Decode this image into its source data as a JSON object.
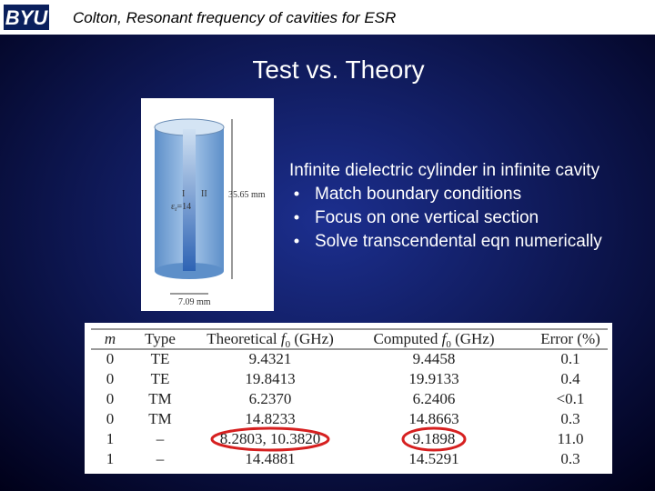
{
  "header": {
    "logo": "BYU",
    "title": "Colton, Resonant frequency of cavities for ESR"
  },
  "slide_title": "Test vs. Theory",
  "figure": {
    "region1": "I",
    "region2": "II",
    "permittivity": {
      "sym": "ε",
      "sub": "r",
      "post": "=14"
    },
    "height": "35.65 mm",
    "width": "7.09 mm"
  },
  "text": {
    "lead": "Infinite dielectric cylinder in infinite cavity",
    "bullets": [
      "Match boundary conditions",
      "Focus on one vertical section",
      "Solve transcendental eqn numerically"
    ]
  },
  "table": {
    "columns": [
      {
        "pre": "m"
      },
      {
        "pre": "Type"
      },
      {
        "pre": "Theoretical ",
        "sym": "f",
        "sub": "0",
        "post": " (GHz)"
      },
      {
        "pre": "Computed ",
        "sym": "f",
        "sub": "0",
        "post": " (GHz)"
      },
      {
        "pre": "Error (%)"
      }
    ],
    "rows": [
      [
        "0",
        "TE",
        "9.4321",
        "9.4458",
        "0.1"
      ],
      [
        "0",
        "TE",
        "19.8413",
        "19.9133",
        "0.4"
      ],
      [
        "0",
        "TM",
        "6.2370",
        "6.2406",
        "<0.1"
      ],
      [
        "0",
        "TM",
        "14.8233",
        "14.8663",
        "0.3"
      ],
      [
        "1",
        "–",
        "8.2803, 10.3820",
        "9.1898",
        "11.0"
      ],
      [
        "1",
        "–",
        "14.4881",
        "14.5291",
        "0.3"
      ]
    ]
  }
}
